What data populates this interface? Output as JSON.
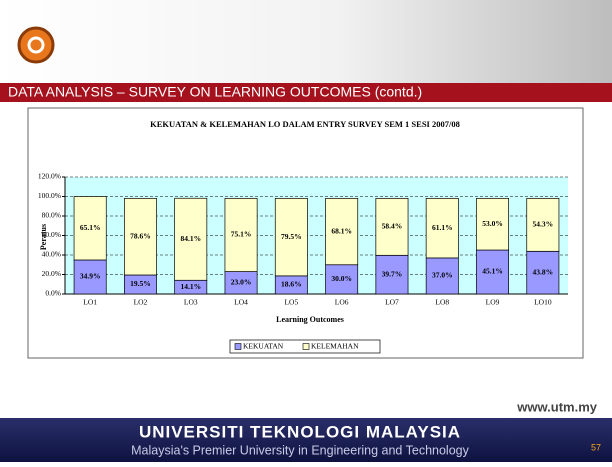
{
  "header": {
    "title": "DATA ANALYSIS – SURVEY ON LEARNING OUTCOMES (contd.)"
  },
  "chart_data": {
    "type": "bar",
    "stacked": true,
    "title": "KEKUATAN & KELEMAHAN LO DALAM ENTRY SURVEY SEM 1 SESI 2007/08",
    "x_label": "Learning Outcomes",
    "y_label": "Peratus",
    "categories": [
      "LO1",
      "LO2",
      "LO3",
      "LO4",
      "LO5",
      "LO6",
      "LO7",
      "LO8",
      "LO9",
      "LO10"
    ],
    "series": [
      {
        "name": "KEKUATAN",
        "color": "#9999ff",
        "values": [
          34.9,
          19.5,
          14.1,
          23.0,
          18.6,
          30.0,
          39.7,
          37.0,
          45.1,
          43.8
        ],
        "value_labels": [
          "34.9%",
          "19.5%",
          "14.1%",
          "23.0%",
          "18.6%",
          "30.0%",
          "39.7%",
          "37.0%",
          "45.1%",
          "43.8%"
        ]
      },
      {
        "name": "KELEMAHAN",
        "color": "#ffffcc",
        "values": [
          65.1,
          78.6,
          84.1,
          75.1,
          79.5,
          68.1,
          58.4,
          61.1,
          53.0,
          54.3
        ],
        "value_labels": [
          "65.1%",
          "78.6%",
          "84.1%",
          "75.1%",
          "79.5%",
          "68.1%",
          "58.4%",
          "61.1%",
          "53.0%",
          "54.3%"
        ]
      }
    ],
    "ylim": [
      0,
      120
    ],
    "yticks": [
      {
        "value": 0,
        "label": "0.0%"
      },
      {
        "value": 20,
        "label": "20.0%"
      },
      {
        "value": 40,
        "label": "40.0%"
      },
      {
        "value": 60,
        "label": "60.0%"
      },
      {
        "value": 80,
        "label": "80.0%"
      },
      {
        "value": 100,
        "label": "100.0%"
      },
      {
        "value": 120,
        "label": "120.0%"
      }
    ],
    "grid": true,
    "legend": "bottom",
    "plot_background": "#ccffff"
  },
  "footer": {
    "url": "www.utm.my",
    "university": "UNIVERSITI TEKNOLOGI MALAYSIA",
    "tagline": "Malaysia's Premier University in Engineering and Technology",
    "page": "57"
  }
}
